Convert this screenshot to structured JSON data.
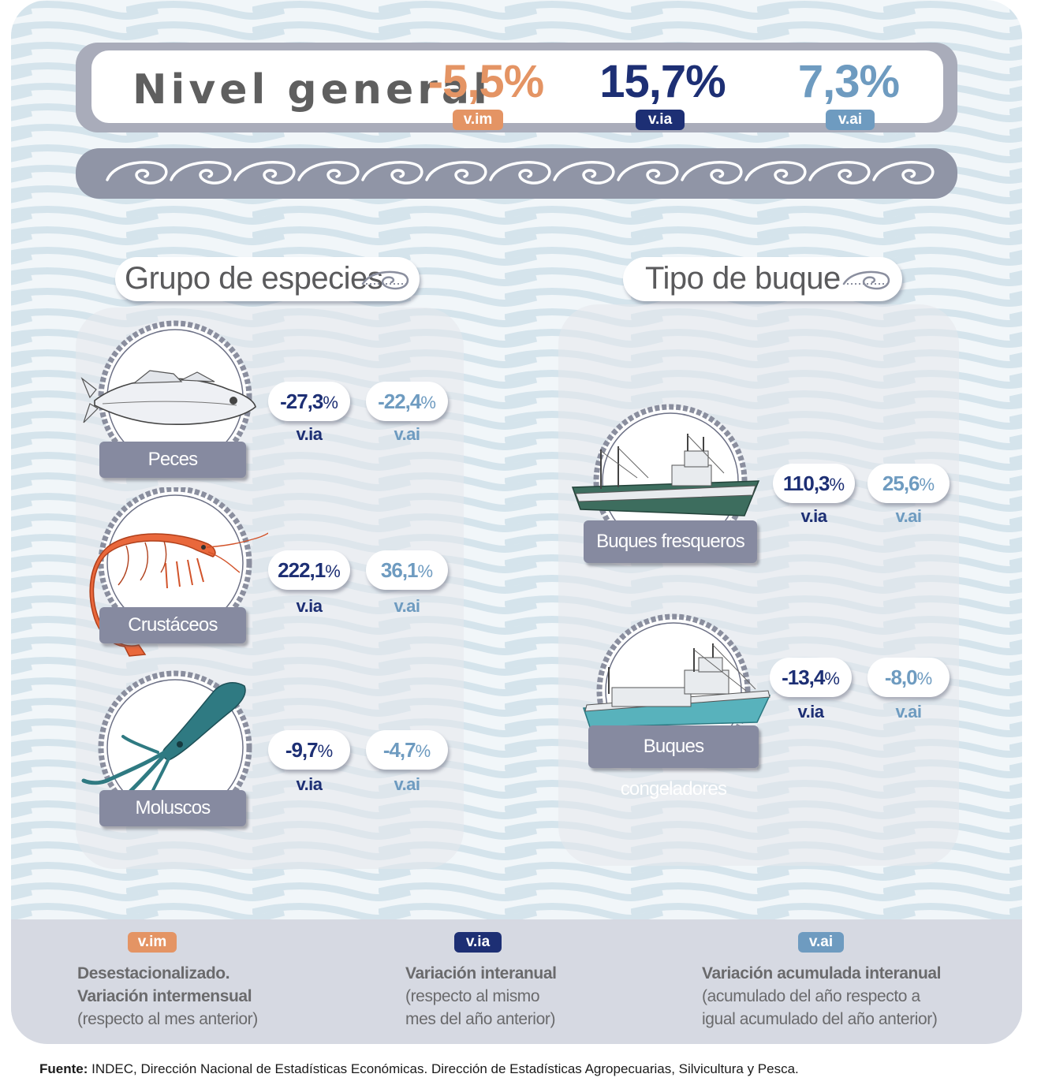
{
  "colors": {
    "vim": "#e49464",
    "via": "#1d2f74",
    "vai": "#6e9bc0",
    "label_box": "#868aa0",
    "chain_bar": "#9095a6"
  },
  "header": {
    "title": "Nivel general",
    "vim_value": "-5,5%",
    "vim_tag": "v.im",
    "via_value": "15,7%",
    "via_tag": "v.ia",
    "vai_value": "7,3%",
    "vai_tag": "v.ai"
  },
  "chain_icon": "fishhook-chain-icon",
  "species_section": {
    "title": "Grupo de especies",
    "icon": "fishhook-icon",
    "items": [
      {
        "label": "Peces",
        "icon": "fish-icon",
        "via_num": "-27,3",
        "vai_num": "-22,4",
        "pct": "%",
        "via_tag": "v.ia",
        "vai_tag": "v.ai"
      },
      {
        "label": "Crustáceos",
        "icon": "shrimp-icon",
        "via_num": "222,1",
        "vai_num": "36,1",
        "pct": "%",
        "via_tag": "v.ia",
        "vai_tag": "v.ai"
      },
      {
        "label": "Moluscos",
        "icon": "squid-icon",
        "via_num": "-9,7",
        "vai_num": "-4,7",
        "pct": "%",
        "via_tag": "v.ia",
        "vai_tag": "v.ai"
      }
    ]
  },
  "vessel_section": {
    "title": "Tipo de buque",
    "icon": "fishhook-icon",
    "items": [
      {
        "label": "Buques fresqueros",
        "icon": "fresh-trawler-ship-icon",
        "via_num": "110,3",
        "vai_num": "25,6",
        "pct": "%",
        "via_tag": "v.ia",
        "vai_tag": "v.ai"
      },
      {
        "label": "Buques congeladores",
        "icon": "freezer-trawler-ship-icon",
        "via_num": "-13,4",
        "vai_num": "-8,0",
        "pct": "%",
        "via_tag": "v.ia",
        "vai_tag": "v.ai"
      }
    ]
  },
  "legend": {
    "vim": {
      "tag": "v.im",
      "line1": "Desestacionalizado.",
      "line2": "Variación intermensual",
      "line3": "(respecto al mes anterior)"
    },
    "via": {
      "tag": "v.ia",
      "line1": "Variación interanual",
      "line2": "(respecto al mismo",
      "line3": "mes del año anterior)"
    },
    "vai": {
      "tag": "v.ai",
      "line1": "Variación acumulada interanual",
      "line2": "(acumulado del año respecto a",
      "line3": "igual acumulado del año anterior)"
    }
  },
  "source": {
    "label": "Fuente:",
    "text": " INDEC, Dirección Nacional de Estadísticas Económicas. Dirección de Estadísticas Agropecuarias, Silvicultura y Pesca."
  }
}
